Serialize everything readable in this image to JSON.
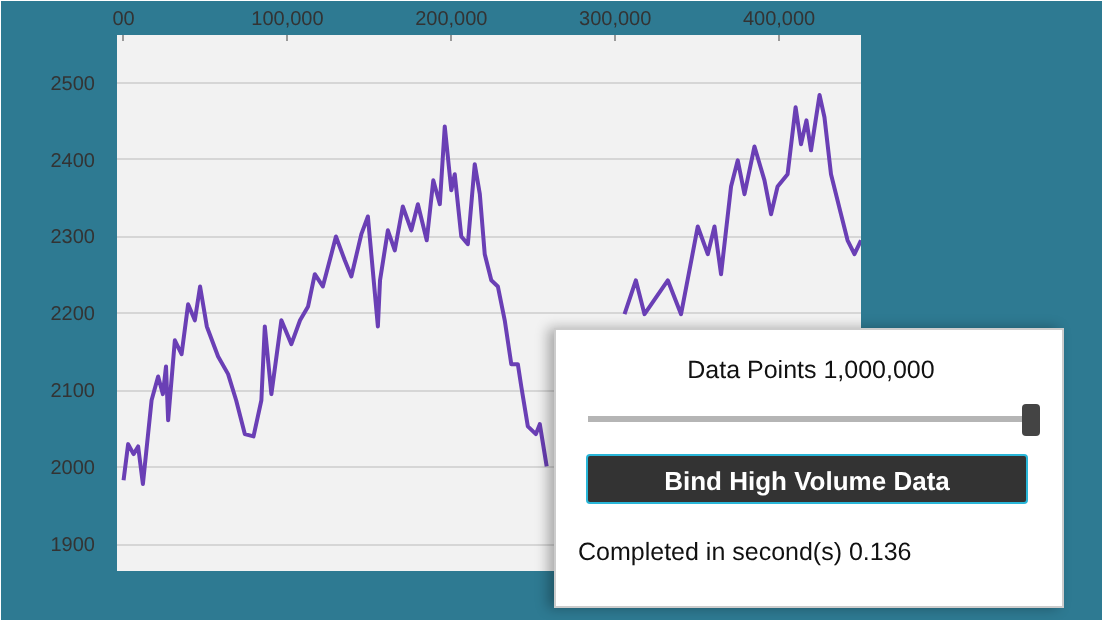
{
  "chart_data": {
    "type": "line",
    "x": [
      0,
      2800,
      6100,
      8900,
      11800,
      17100,
      21100,
      24000,
      25900,
      27200,
      31300,
      35400,
      39400,
      43500,
      46700,
      50800,
      57700,
      63800,
      68700,
      74000,
      79300,
      84100,
      86200,
      90200,
      96300,
      102400,
      107700,
      112600,
      116700,
      121600,
      126800,
      129600,
      135000,
      139000,
      145100,
      149100,
      155200,
      156500,
      161300,
      165500,
      170400,
      175600,
      179600,
      185000,
      189000,
      193000,
      196000,
      200000,
      202100,
      206100,
      210100,
      214300,
      217400,
      220400,
      224400,
      228400,
      232600,
      236600,
      240600,
      242700,
      246700,
      251600,
      254000,
      258200,
      279300,
      305700,
      312600,
      317900,
      332100,
      340200,
      350400,
      356500,
      360600,
      364600,
      370700,
      374800,
      378900,
      385000,
      391100,
      395100,
      399100,
      405200,
      410100,
      413400,
      416700,
      419500,
      424700,
      427700,
      431700,
      437800,
      441800,
      446000,
      450000
    ],
    "series": [
      {
        "color": "#6a3fb5",
        "values": [
          1983,
          2030,
          2017,
          2027,
          1978,
          2087,
          2118,
          2095,
          2131,
          2061,
          2165,
          2147,
          2212,
          2191,
          2235,
          2183,
          2144,
          2121,
          2087,
          2043,
          2040,
          2087,
          2183,
          2095,
          2191,
          2160,
          2191,
          2209,
          2251,
          2235,
          2277,
          2300,
          2269,
          2248,
          2303,
          2326,
          2183,
          2243,
          2308,
          2282,
          2339,
          2308,
          2342,
          2295,
          2373,
          2342,
          2443,
          2360,
          2381,
          2300,
          2290,
          2394,
          2355,
          2277,
          2243,
          2235,
          2191,
          2134,
          2134,
          2105,
          2053,
          2043,
          2056,
          2001,
          null,
          2199,
          2243,
          2199,
          2243,
          2199,
          2313,
          2277,
          2313,
          2251,
          2365,
          2399,
          2355,
          2417,
          2373,
          2329,
          2365,
          2381,
          2468,
          2420,
          2451,
          2412,
          2484,
          2455,
          2381,
          2329,
          2295,
          2277,
          2295
        ]
      }
    ],
    "xlim": [
      -4000,
      450000
    ],
    "xticks": [
      {
        "value": 0,
        "label": "00"
      },
      {
        "value": 100000,
        "label": "100,000"
      },
      {
        "value": 200000,
        "label": "200,000"
      },
      {
        "value": 300000,
        "label": "300,000"
      },
      {
        "value": 400000,
        "label": "400,000"
      }
    ],
    "ylim": [
      1865,
      2562
    ],
    "yticks": [
      1900,
      2000,
      2100,
      2200,
      2300,
      2400,
      2500
    ],
    "grid": "y",
    "annotations": [
      "Data Points 1,000,000",
      "Bind High Volume Data",
      "Completed in second(s) 0.136"
    ]
  }
}
